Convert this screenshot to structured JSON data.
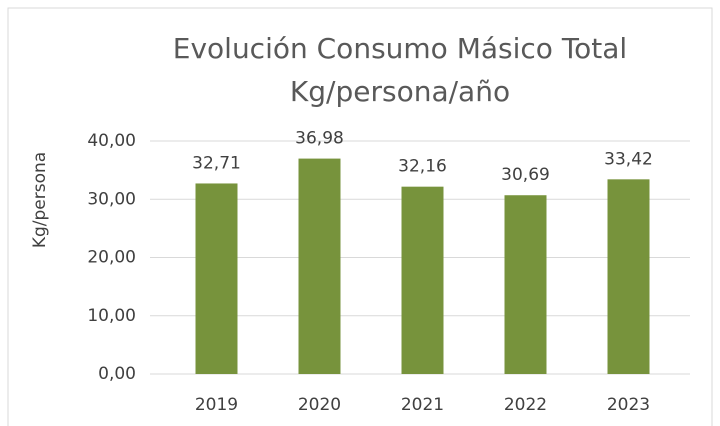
{
  "chart_data": {
    "type": "bar",
    "title": [
      "Evolución Consumo Másico Total",
      "Kg/persona/año"
    ],
    "y_label": "Kg/persona",
    "categories": [
      "2019",
      "2020",
      "2021",
      "2022",
      "2023"
    ],
    "values": [
      32.71,
      36.98,
      32.16,
      30.69,
      33.42
    ],
    "value_labels": [
      "32,71",
      "36,98",
      "32,16",
      "30,69",
      "33,42"
    ],
    "color": "#77933c",
    "ylim": [
      0,
      40
    ],
    "yticks": [
      {
        "value": 0,
        "label": "0,00"
      },
      {
        "value": 10,
        "label": "10,00"
      },
      {
        "value": 20,
        "label": "20,00"
      },
      {
        "value": 30,
        "label": "30,00"
      },
      {
        "value": 40,
        "label": "40,00"
      }
    ],
    "grid": true
  }
}
